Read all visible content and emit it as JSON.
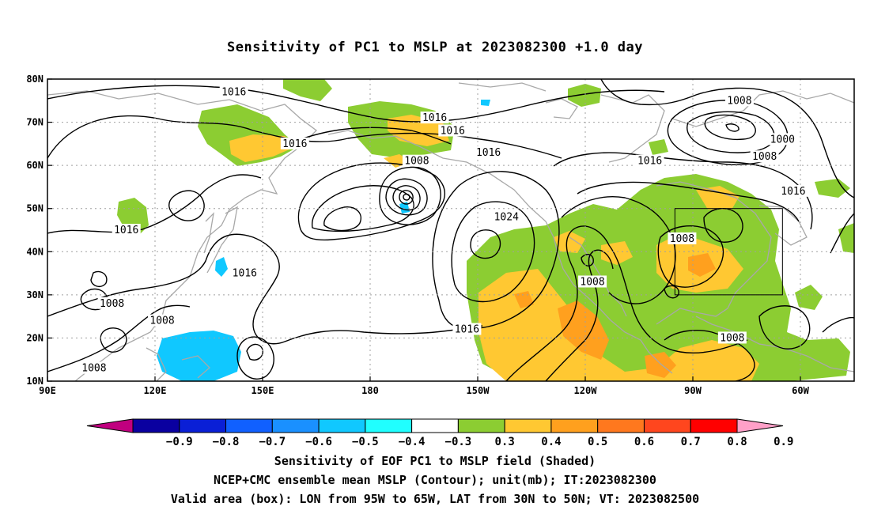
{
  "title": "Sensitivity of PC1 to MSLP at 2023082300 +1.0 day",
  "axes": {
    "lon_ticks": [
      "90E",
      "120E",
      "150E",
      "180",
      "150W",
      "120W",
      "90W",
      "60W"
    ],
    "lat_ticks": [
      "80N",
      "70N",
      "60N",
      "50N",
      "40N",
      "30N",
      "20N",
      "10N"
    ],
    "lon_range": [
      90,
      315
    ],
    "lat_range": [
      10,
      80
    ],
    "grid": "dotted"
  },
  "valid_box": {
    "lon_west": 265,
    "lon_east": 295,
    "lat_south": 30,
    "lat_north": 50
  },
  "contour_labels": [
    {
      "text": "1016",
      "lon": 142,
      "lat": 77
    },
    {
      "text": "1016",
      "lon": 159,
      "lat": 65
    },
    {
      "text": "1016",
      "lon": 112,
      "lat": 45
    },
    {
      "text": "1016",
      "lon": 145,
      "lat": 35
    },
    {
      "text": "1008",
      "lon": 108,
      "lat": 28
    },
    {
      "text": "1008",
      "lon": 122,
      "lat": 24
    },
    {
      "text": "1008",
      "lon": 103,
      "lat": 13
    },
    {
      "text": "1008",
      "lon": 193,
      "lat": 61
    },
    {
      "text": "1016",
      "lon": 198,
      "lat": 71
    },
    {
      "text": "1016",
      "lon": 203,
      "lat": 68
    },
    {
      "text": "1016",
      "lon": 213,
      "lat": 63
    },
    {
      "text": "1024",
      "lon": 218,
      "lat": 48
    },
    {
      "text": "1016",
      "lon": 207,
      "lat": 22
    },
    {
      "text": "1008",
      "lon": 242,
      "lat": 33
    },
    {
      "text": "1008",
      "lon": 283,
      "lat": 75
    },
    {
      "text": "1000",
      "lon": 295,
      "lat": 66
    },
    {
      "text": "1008",
      "lon": 290,
      "lat": 62
    },
    {
      "text": "1016",
      "lon": 258,
      "lat": 61
    },
    {
      "text": "1016",
      "lon": 298,
      "lat": 54
    },
    {
      "text": "1008",
      "lon": 267,
      "lat": 43
    },
    {
      "text": "1008",
      "lon": 281,
      "lat": 20
    }
  ],
  "colorbar": {
    "labels": [
      "-0.9",
      "-0.8",
      "-0.7",
      "-0.6",
      "-0.5",
      "-0.4",
      "-0.3",
      "0.3",
      "0.4",
      "0.5",
      "0.6",
      "0.7",
      "0.8",
      "0.9"
    ],
    "colors": [
      "#c0007f",
      "#0a00a0",
      "#0a1fd6",
      "#1060ff",
      "#1a90ff",
      "#10c8ff",
      "#20ffff",
      "#ffffff",
      "#8ccd32",
      "#ffc832",
      "#ffa01e",
      "#ff781e",
      "#ff461e",
      "#ff0000",
      "#ffa0c8"
    ]
  },
  "colors": {
    "coast": "#a8a8a8",
    "grid": "#a0a0a0",
    "contour": "#000000"
  },
  "captions": [
    "Sensitivity of EOF PC1 to MSLP field (Shaded)",
    "NCEP+CMC ensemble mean MSLP (Contour); unit(mb); IT:2023082300",
    "Valid area (box): LON from 95W to 65W, LAT from 30N to 50N; VT: 2023082500"
  ]
}
